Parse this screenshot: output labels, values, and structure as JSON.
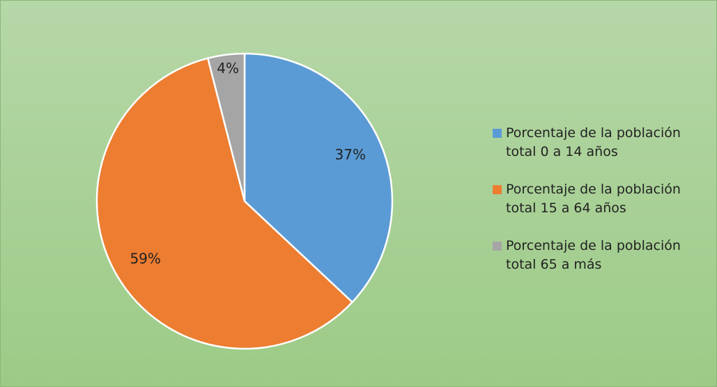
{
  "chart_data": {
    "type": "pie",
    "categories": [
      "Porcentaje de la población total 0 a 14 años",
      "Porcentaje de la población total 15 a 64 años",
      "Porcentaje de la población total 65 a más"
    ],
    "values": [
      37,
      59,
      4
    ],
    "value_labels": [
      "37%",
      "59%",
      "4%"
    ],
    "colors": [
      "#5b9bd5",
      "#ed7d31",
      "#a5a5a5"
    ],
    "legend": "right"
  }
}
